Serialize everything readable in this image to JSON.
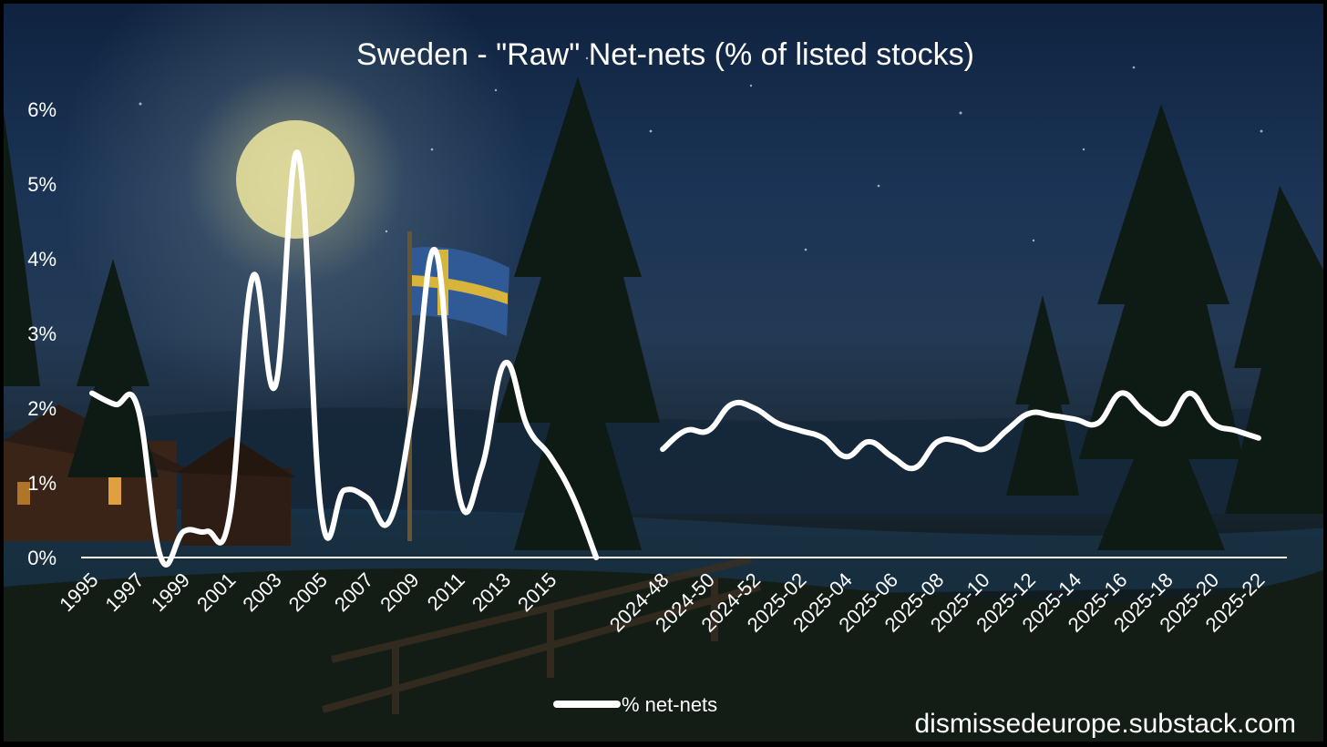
{
  "chart_data": {
    "type": "line",
    "title": "Sweden - \"Raw\" Net-nets (% of listed stocks)",
    "ylim": [
      0,
      6
    ],
    "y_ticks": [
      "0%",
      "1%",
      "2%",
      "3%",
      "4%",
      "5%",
      "6%"
    ],
    "y_tick_values": [
      0,
      1,
      2,
      3,
      4,
      5,
      6
    ],
    "legend": {
      "position": "bottom",
      "entries": [
        "% net-nets"
      ]
    },
    "grid": false,
    "x_labels": [
      "1995",
      "1997",
      "1999",
      "2001",
      "2003",
      "2005",
      "2007",
      "2009",
      "2011",
      "2013",
      "2015",
      "2024-48",
      "2024-50",
      "2024-52",
      "2025-02",
      "2025-04",
      "2025-06",
      "2025-08",
      "2025-10",
      "2025-12",
      "2025-14",
      "2025-16",
      "2025-18",
      "2025-20",
      "2025-22"
    ],
    "series": [
      {
        "name": "% net-nets",
        "color": "#ffffff",
        "segments": [
          {
            "x": [
              "1995",
              "1996",
              "1997",
              "1998",
              "1999",
              "2000",
              "2001",
              "2002",
              "2003",
              "2004",
              "2005",
              "2006",
              "2007",
              "2008",
              "2009",
              "2010",
              "2011",
              "2012",
              "2013",
              "2014",
              "2015",
              "2016",
              "2017"
            ],
            "y": [
              2.2,
              2.05,
              2.0,
              0.0,
              0.35,
              0.35,
              0.55,
              3.75,
              2.3,
              5.4,
              0.6,
              0.9,
              0.8,
              0.5,
              2.0,
              4.1,
              0.85,
              1.2,
              2.6,
              1.75,
              1.35,
              0.8,
              0.0
            ]
          },
          {
            "x": [
              "2024-48",
              "2024-49",
              "2024-50",
              "2024-51",
              "2024-52",
              "2025-01",
              "2025-02",
              "2025-03",
              "2025-04",
              "2025-05",
              "2025-06",
              "2025-07",
              "2025-08",
              "2025-09",
              "2025-10",
              "2025-11",
              "2025-12",
              "2025-13",
              "2025-14",
              "2025-15",
              "2025-16",
              "2025-17",
              "2025-18",
              "2025-19",
              "2025-20",
              "2025-21",
              "2025-22"
            ],
            "y": [
              1.45,
              1.7,
              1.7,
              2.05,
              2.0,
              1.8,
              1.7,
              1.6,
              1.35,
              1.55,
              1.35,
              1.2,
              1.55,
              1.55,
              1.45,
              1.7,
              1.93,
              1.9,
              1.85,
              1.8,
              2.2,
              1.95,
              1.8,
              2.2,
              1.8,
              1.7,
              1.6
            ]
          }
        ]
      }
    ]
  },
  "scene": {
    "moon_color": "#e6df9c",
    "flag_blue": "#2f5a96",
    "flag_yellow": "#d7b43c",
    "tree_color": "#0e1a14"
  },
  "watermark": "dismissedeurope.substack.com"
}
